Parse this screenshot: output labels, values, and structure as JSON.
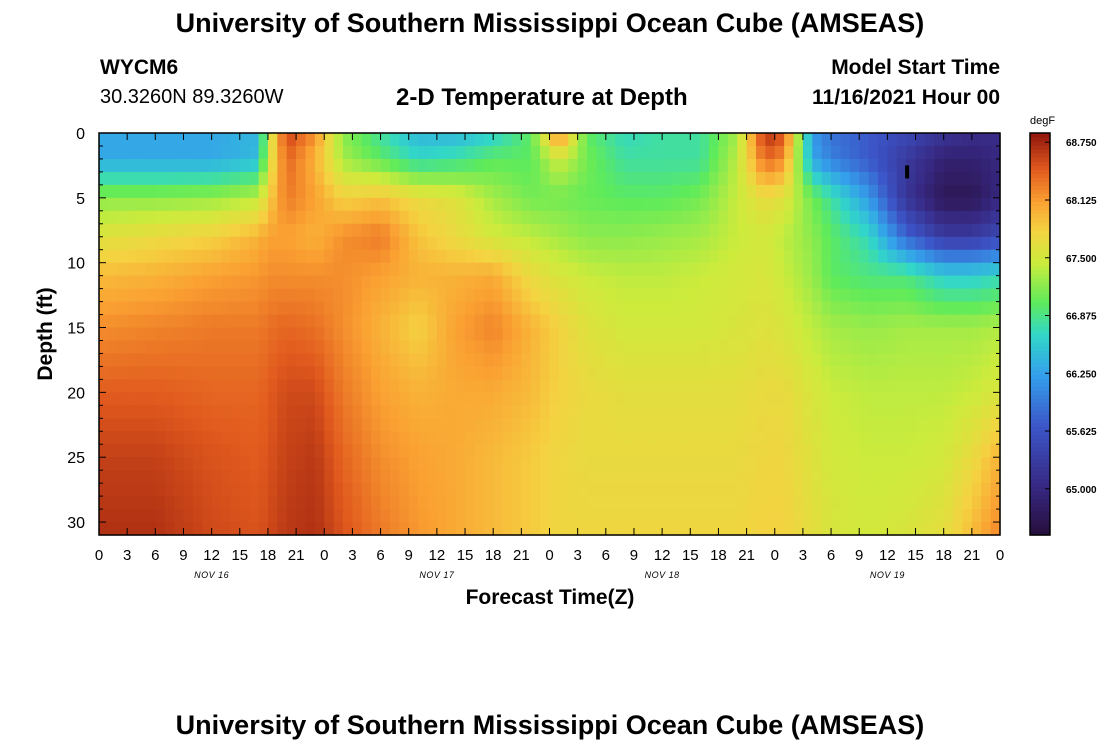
{
  "page": {
    "title": "University of Southern Mississippi Ocean Cube (AMSEAS)",
    "footer_title": "University of Southern Mississippi Ocean Cube (AMSEAS)",
    "station_id": "WYCM6",
    "coordinates": "30.3260N  89.3260W",
    "plot_title": "2-D Temperature at Depth",
    "model_start_label": "Model Start Time",
    "model_start_value": "11/16/2021 Hour 00"
  },
  "chart_data": {
    "type": "heatmap",
    "title": "2-D Temperature at Depth",
    "xlabel": "Forecast Time(Z)",
    "ylabel": "Depth (ft)",
    "x_hours_range": [
      0,
      96
    ],
    "ylim": [
      0,
      31
    ],
    "y_ticks": [
      0,
      5,
      10,
      15,
      20,
      25,
      30
    ],
    "x_tick_labels": [
      "0",
      "3",
      "6",
      "9",
      "12",
      "15",
      "18",
      "21",
      "0",
      "3",
      "6",
      "9",
      "12",
      "15",
      "18",
      "21",
      "0",
      "3",
      "6",
      "9",
      "12",
      "15",
      "18",
      "21",
      "0",
      "3",
      "6",
      "9",
      "12",
      "15",
      "18",
      "21",
      "0"
    ],
    "day_labels": [
      {
        "label": "NOV 16",
        "hour": 12
      },
      {
        "label": "NOV 17",
        "hour": 36
      },
      {
        "label": "NOV 18",
        "hour": 60
      },
      {
        "label": "NOV 19",
        "hour": 84
      }
    ],
    "colorbar": {
      "units": "degF",
      "min": 64.5,
      "max": 68.85,
      "tick_values": [
        68.75,
        68.125,
        67.5,
        66.875,
        66.25,
        65.625,
        65.0
      ],
      "tick_labels": [
        "68.750",
        "68.125",
        "67.500",
        "66.875",
        "66.250",
        "65.625",
        "65.000"
      ]
    },
    "depths_ft": [
      0,
      2,
      5,
      8,
      11,
      15,
      20,
      25,
      31
    ],
    "hours": [
      0,
      6,
      12,
      17,
      18,
      20,
      23,
      26,
      30,
      34,
      38,
      42,
      46,
      49,
      52,
      56,
      60,
      64,
      68,
      71,
      73,
      76,
      78,
      82,
      86,
      90,
      93,
      96
    ],
    "temperature_degF": [
      [
        66.3,
        66.3,
        66.3,
        66.4,
        67.4,
        68.6,
        68.2,
        67.2,
        66.8,
        66.4,
        66.4,
        66.6,
        67.0,
        68.3,
        67.0,
        66.7,
        66.8,
        66.8,
        67.3,
        68.7,
        68.5,
        66.2,
        65.9,
        65.7,
        65.5,
        65.2,
        65.1,
        65.1
      ],
      [
        66.3,
        66.3,
        66.3,
        66.45,
        67.5,
        68.4,
        68.0,
        67.3,
        67.0,
        66.7,
        66.8,
        67.0,
        67.0,
        67.5,
        67.1,
        66.8,
        66.8,
        66.8,
        67.4,
        68.4,
        68.2,
        66.3,
        66.0,
        65.7,
        65.3,
        64.9,
        64.9,
        65.0
      ],
      [
        67.2,
        67.2,
        67.25,
        67.4,
        67.8,
        68.3,
        68.1,
        67.8,
        67.9,
        67.7,
        67.6,
        67.3,
        67.1,
        67.1,
        67.05,
        67.0,
        67.0,
        67.1,
        67.45,
        67.7,
        67.6,
        67.1,
        66.8,
        66.2,
        65.2,
        64.7,
        64.7,
        65.0
      ],
      [
        67.6,
        67.7,
        67.8,
        68.0,
        68.1,
        68.1,
        68.0,
        68.2,
        68.3,
        67.9,
        67.7,
        67.5,
        67.4,
        67.3,
        67.2,
        67.2,
        67.25,
        67.3,
        67.45,
        67.5,
        67.4,
        67.2,
        67.0,
        66.7,
        65.8,
        65.3,
        65.3,
        65.5
      ],
      [
        67.95,
        68.0,
        68.1,
        68.15,
        68.2,
        68.2,
        68.2,
        68.2,
        68.1,
        68.0,
        68.0,
        68.05,
        67.7,
        67.55,
        67.45,
        67.4,
        67.4,
        67.45,
        67.5,
        67.55,
        67.45,
        67.25,
        67.0,
        66.9,
        66.9,
        66.6,
        66.6,
        66.7
      ],
      [
        68.2,
        68.25,
        68.3,
        68.3,
        68.35,
        68.4,
        68.35,
        68.2,
        68.0,
        67.8,
        68.1,
        68.25,
        68.0,
        67.8,
        67.6,
        67.5,
        67.5,
        67.5,
        67.55,
        67.6,
        67.55,
        67.4,
        67.3,
        67.25,
        67.3,
        67.3,
        67.3,
        67.35
      ],
      [
        68.45,
        68.45,
        68.4,
        68.4,
        68.45,
        68.55,
        68.55,
        68.3,
        68.1,
        68.0,
        68.05,
        68.05,
        67.95,
        67.8,
        67.7,
        67.65,
        67.65,
        67.65,
        67.65,
        67.7,
        67.7,
        67.55,
        67.45,
        67.4,
        67.4,
        67.4,
        67.45,
        67.55
      ],
      [
        68.6,
        68.6,
        68.5,
        68.45,
        68.5,
        68.6,
        68.65,
        68.4,
        68.2,
        68.1,
        68.05,
        67.95,
        67.85,
        67.75,
        67.7,
        67.7,
        67.7,
        67.7,
        67.7,
        67.75,
        67.75,
        67.6,
        67.5,
        67.45,
        67.45,
        67.5,
        67.7,
        68.0
      ],
      [
        68.7,
        68.7,
        68.55,
        68.5,
        68.55,
        68.65,
        68.7,
        68.5,
        68.3,
        68.15,
        68.05,
        67.95,
        67.85,
        67.75,
        67.75,
        67.75,
        67.75,
        67.75,
        67.75,
        67.8,
        67.8,
        67.65,
        67.55,
        67.5,
        67.55,
        67.65,
        67.95,
        68.25
      ]
    ],
    "annotations": [
      {
        "type": "marker",
        "hour": 86.1,
        "depth_from_ft": 2.5,
        "depth_to_ft": 3.5
      }
    ]
  }
}
